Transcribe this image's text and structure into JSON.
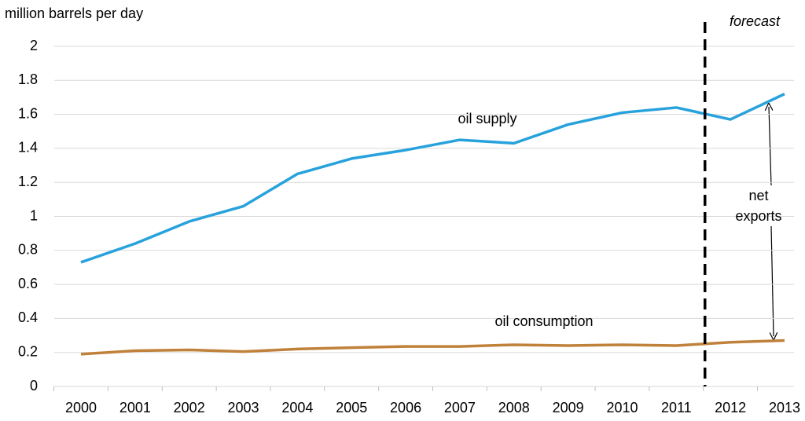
{
  "chart_data": {
    "type": "line",
    "y_axis_label": "million barrels per day",
    "categories": [
      "2000",
      "2001",
      "2002",
      "2003",
      "2004",
      "2005",
      "2006",
      "2007",
      "2008",
      "2009",
      "2010",
      "2011",
      "2012",
      "2013"
    ],
    "series": [
      {
        "name": "oil supply",
        "color": "#28a2dc",
        "values": [
          0.73,
          0.84,
          0.97,
          1.06,
          1.25,
          1.34,
          1.39,
          1.45,
          1.43,
          1.54,
          1.61,
          1.64,
          1.57,
          1.72
        ]
      },
      {
        "name": "oil consumption",
        "color": "#c0813b",
        "values": [
          0.19,
          0.21,
          0.215,
          0.205,
          0.22,
          0.228,
          0.235,
          0.235,
          0.245,
          0.24,
          0.245,
          0.24,
          0.26,
          0.27
        ]
      }
    ],
    "ylim": [
      0,
      2
    ],
    "yticks": [
      0,
      0.2,
      0.4,
      0.6,
      0.8,
      1,
      1.2,
      1.4,
      1.6,
      1.8,
      2
    ],
    "grid": true,
    "annotations": {
      "forecast": "forecast",
      "net_exports": "net exports"
    }
  }
}
